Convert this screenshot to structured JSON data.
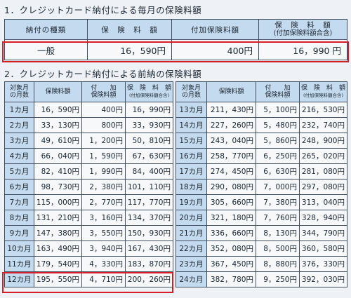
{
  "section1": {
    "title": "1．クレジットカード納付による毎月の保険料額",
    "headers": [
      "納付の種類",
      "保　険　料　額",
      "付加保険料額",
      "保　険　料　額",
      "(付加保険料額合含)"
    ],
    "row": {
      "type": "一般",
      "premium": "16，590円",
      "additional": "400円",
      "total": "16，990 円"
    }
  },
  "section2": {
    "title": "2．クレジットカード納付による前納の保険料額",
    "headers": {
      "months_1": "対象月",
      "months_2": "の月数",
      "premium": "保険料額",
      "additional_1": "付　　加",
      "additional_2": "保険料額",
      "total_1": "保　険　料　額",
      "total_2": "(付加保険料額合含)"
    },
    "left_rows": [
      {
        "m": "1カ月",
        "p": "16，590円",
        "a": "400円",
        "t": "16，990円"
      },
      {
        "m": "2カ月",
        "p": "33，130円",
        "a": "800円",
        "t": "33，930円"
      },
      {
        "m": "3カ月",
        "p": "49，610円",
        "a": "1，200円",
        "t": "50，810円"
      },
      {
        "m": "4カ月",
        "p": "66，040円",
        "a": "1，590円",
        "t": "67，630円"
      },
      {
        "m": "5カ月",
        "p": "82，410円",
        "a": "1，990円",
        "t": "84，400円"
      },
      {
        "m": "6カ月",
        "p": "98，730円",
        "a": "2，380円",
        "t": "101，110円"
      },
      {
        "m": "7カ月",
        "p": "115，000円",
        "a": "2，770円",
        "t": "117，770円"
      },
      {
        "m": "8カ月",
        "p": "131，210円",
        "a": "3，160円",
        "t": "134，370円"
      },
      {
        "m": "9カ月",
        "p": "147，380円",
        "a": "3，550円",
        "t": "150，930円"
      },
      {
        "m": "10カ月",
        "p": "163，490円",
        "a": "3，940円",
        "t": "167，430円"
      },
      {
        "m": "11カ月",
        "p": "179，540円",
        "a": "4，330円",
        "t": "183，870円"
      },
      {
        "m": "12カ月",
        "p": "195，550円",
        "a": "4，710円",
        "t": "200，260円"
      }
    ],
    "right_rows": [
      {
        "m": "13カ月",
        "p": "211，430円",
        "a": "5，100円",
        "t": "216，530円"
      },
      {
        "m": "14カ月",
        "p": "227，260円",
        "a": "5，480円",
        "t": "232，740円"
      },
      {
        "m": "15カ月",
        "p": "243，040円",
        "a": "5，860円",
        "t": "248，900円"
      },
      {
        "m": "16カ月",
        "p": "258，770円",
        "a": "6，250円",
        "t": "265，020円"
      },
      {
        "m": "17カ月",
        "p": "274，450円",
        "a": "6，630円",
        "t": "281，080円"
      },
      {
        "m": "18カ月",
        "p": "290，080円",
        "a": "7，000円",
        "t": "297，080円"
      },
      {
        "m": "19カ月",
        "p": "305，660円",
        "a": "7，380円",
        "t": "313，040円"
      },
      {
        "m": "20カ月",
        "p": "321，180円",
        "a": "7，760円",
        "t": "328，940円"
      },
      {
        "m": "21カ月",
        "p": "336，660円",
        "a": "8，130円",
        "t": "344，790円"
      },
      {
        "m": "22カ月",
        "p": "352，080円",
        "a": "8，500円",
        "t": "360，580円"
      },
      {
        "m": "23カ月",
        "p": "367，450円",
        "a": "8，880円",
        "t": "376，330円"
      },
      {
        "m": "24カ月",
        "p": "382，780円",
        "a": "9，250円",
        "t": "392，030円"
      }
    ]
  },
  "colors": {
    "header_bg": "#c4dbef",
    "highlight": "#d81d26",
    "cell_bg": "#f6f8fa"
  }
}
